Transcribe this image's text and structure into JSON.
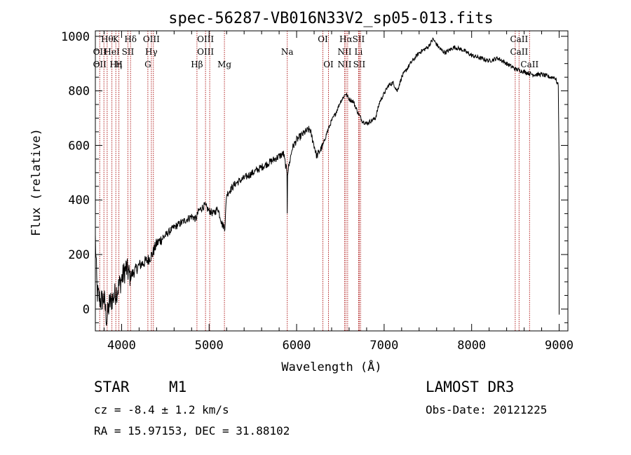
{
  "chart_data": {
    "type": "line",
    "title": "spec-56287-VB016N33V2_sp05-013.fits",
    "xlabel": "Wavelength (Å)",
    "ylabel": "Flux (relative)",
    "xlim": [
      3700,
      9100
    ],
    "ylim": [
      -80,
      1020
    ],
    "x_ticks": [
      4000,
      5000,
      6000,
      7000,
      8000,
      9000
    ],
    "y_ticks": [
      0,
      200,
      400,
      600,
      800,
      1000
    ],
    "x_tick_labels": [
      "4000",
      "5000",
      "6000",
      "7000",
      "8000",
      "9000"
    ],
    "y_tick_labels": [
      "0",
      "200",
      "400",
      "600",
      "800",
      "1000"
    ],
    "grid": false,
    "spectrum_anchors": [
      [
        3700,
        260
      ],
      [
        3720,
        60
      ],
      [
        3760,
        30
      ],
      [
        3800,
        40
      ],
      [
        3830,
        -40
      ],
      [
        3860,
        20
      ],
      [
        3900,
        40
      ],
      [
        3950,
        70
      ],
      [
        4000,
        110
      ],
      [
        4050,
        150
      ],
      [
        4100,
        120
      ],
      [
        4150,
        140
      ],
      [
        4200,
        160
      ],
      [
        4300,
        180
      ],
      [
        4350,
        200
      ],
      [
        4400,
        240
      ],
      [
        4500,
        270
      ],
      [
        4600,
        300
      ],
      [
        4700,
        320
      ],
      [
        4800,
        340
      ],
      [
        4850,
        330
      ],
      [
        4880,
        360
      ],
      [
        4950,
        380
      ],
      [
        5000,
        360
      ],
      [
        5050,
        350
      ],
      [
        5100,
        370
      ],
      [
        5150,
        310
      ],
      [
        5180,
        300
      ],
      [
        5200,
        420
      ],
      [
        5300,
        460
      ],
      [
        5400,
        480
      ],
      [
        5500,
        500
      ],
      [
        5600,
        520
      ],
      [
        5700,
        540
      ],
      [
        5800,
        560
      ],
      [
        5850,
        570
      ],
      [
        5890,
        500
      ],
      [
        5893,
        360
      ],
      [
        5897,
        500
      ],
      [
        5950,
        590
      ],
      [
        6000,
        620
      ],
      [
        6100,
        650
      ],
      [
        6150,
        660
      ],
      [
        6200,
        600
      ],
      [
        6230,
        560
      ],
      [
        6300,
        600
      ],
      [
        6350,
        650
      ],
      [
        6400,
        690
      ],
      [
        6450,
        720
      ],
      [
        6500,
        760
      ],
      [
        6560,
        790
      ],
      [
        6600,
        770
      ],
      [
        6650,
        760
      ],
      [
        6700,
        720
      ],
      [
        6750,
        690
      ],
      [
        6800,
        680
      ],
      [
        6900,
        700
      ],
      [
        6950,
        760
      ],
      [
        7000,
        790
      ],
      [
        7050,
        820
      ],
      [
        7100,
        830
      ],
      [
        7150,
        800
      ],
      [
        7200,
        850
      ],
      [
        7300,
        900
      ],
      [
        7400,
        940
      ],
      [
        7500,
        960
      ],
      [
        7560,
        990
      ],
      [
        7600,
        970
      ],
      [
        7650,
        950
      ],
      [
        7700,
        940
      ],
      [
        7800,
        960
      ],
      [
        7900,
        950
      ],
      [
        8000,
        930
      ],
      [
        8100,
        920
      ],
      [
        8200,
        910
      ],
      [
        8300,
        920
      ],
      [
        8400,
        900
      ],
      [
        8500,
        880
      ],
      [
        8600,
        870
      ],
      [
        8700,
        860
      ],
      [
        8800,
        860
      ],
      [
        8900,
        850
      ],
      [
        8950,
        850
      ],
      [
        8990,
        820
      ],
      [
        9000,
        520
      ],
      [
        9000,
        -20
      ]
    ],
    "line_markers": [
      {
        "wavelength": 3750,
        "labels": [
          {
            "text": "OII",
            "row": 2
          },
          {
            "text": "OII",
            "row": 3
          }
        ]
      },
      {
        "wavelength": 3798,
        "labels": []
      },
      {
        "wavelength": 3835,
        "labels": [
          {
            "text": "Hθ",
            "row": 1
          }
        ]
      },
      {
        "wavelength": 3889,
        "labels": [
          {
            "text": "HeI",
            "row": 2
          }
        ]
      },
      {
        "wavelength": 3934,
        "labels": [
          {
            "text": "K",
            "row": 1
          },
          {
            "text": "Hη",
            "row": 3
          }
        ]
      },
      {
        "wavelength": 3969,
        "labels": [
          {
            "text": "H",
            "row": 3
          }
        ]
      },
      {
        "wavelength": 4072,
        "labels": [
          {
            "text": "SII",
            "row": 2
          }
        ]
      },
      {
        "wavelength": 4102,
        "labels": [
          {
            "text": "Hδ",
            "row": 1
          }
        ]
      },
      {
        "wavelength": 4300,
        "labels": [
          {
            "text": "G",
            "row": 3
          }
        ]
      },
      {
        "wavelength": 4340,
        "labels": [
          {
            "text": "OIII",
            "row": 1
          },
          {
            "text": "Hγ",
            "row": 2
          }
        ]
      },
      {
        "wavelength": 4363,
        "labels": []
      },
      {
        "wavelength": 4861,
        "labels": [
          {
            "text": "Hβ",
            "row": 3
          }
        ]
      },
      {
        "wavelength": 4959,
        "labels": [
          {
            "text": "OIII",
            "row": 1
          },
          {
            "text": "OIII",
            "row": 2
          }
        ]
      },
      {
        "wavelength": 5007,
        "labels": []
      },
      {
        "wavelength": 5175,
        "labels": [
          {
            "text": "Mg",
            "row": 3
          }
        ]
      },
      {
        "wavelength": 5893,
        "labels": [
          {
            "text": "Na",
            "row": 2
          }
        ]
      },
      {
        "wavelength": 6300,
        "labels": [
          {
            "text": "OI",
            "row": 1
          }
        ]
      },
      {
        "wavelength": 6364,
        "labels": [
          {
            "text": "OI",
            "row": 3
          }
        ]
      },
      {
        "wavelength": 6548,
        "labels": [
          {
            "text": "NII",
            "row": 2
          },
          {
            "text": "NII",
            "row": 3
          }
        ]
      },
      {
        "wavelength": 6563,
        "labels": [
          {
            "text": "Hα",
            "row": 1
          }
        ]
      },
      {
        "wavelength": 6583,
        "labels": []
      },
      {
        "wavelength": 6708,
        "labels": [
          {
            "text": "SII",
            "row": 1
          },
          {
            "text": "Li",
            "row": 2
          }
        ]
      },
      {
        "wavelength": 6716,
        "labels": [
          {
            "text": "SII",
            "row": 3
          }
        ]
      },
      {
        "wavelength": 6731,
        "labels": []
      },
      {
        "wavelength": 8498,
        "labels": []
      },
      {
        "wavelength": 8542,
        "labels": [
          {
            "text": "CaII",
            "row": 1
          },
          {
            "text": "CaII",
            "row": 2
          }
        ]
      },
      {
        "wavelength": 8662,
        "labels": [
          {
            "text": "CaII",
            "row": 3
          }
        ]
      }
    ]
  },
  "info": {
    "object_class": "STAR",
    "subclass": "M1",
    "survey": "LAMOST DR3",
    "redshift": "cz = -8.4 ± 1.2 km/s",
    "obs_date": "Obs-Date: 20121225",
    "coords": "RA =  15.97153, DEC =  31.88102"
  },
  "colors": {
    "spectrum": "#000000",
    "marker": "#b22222",
    "axis": "#000000"
  }
}
